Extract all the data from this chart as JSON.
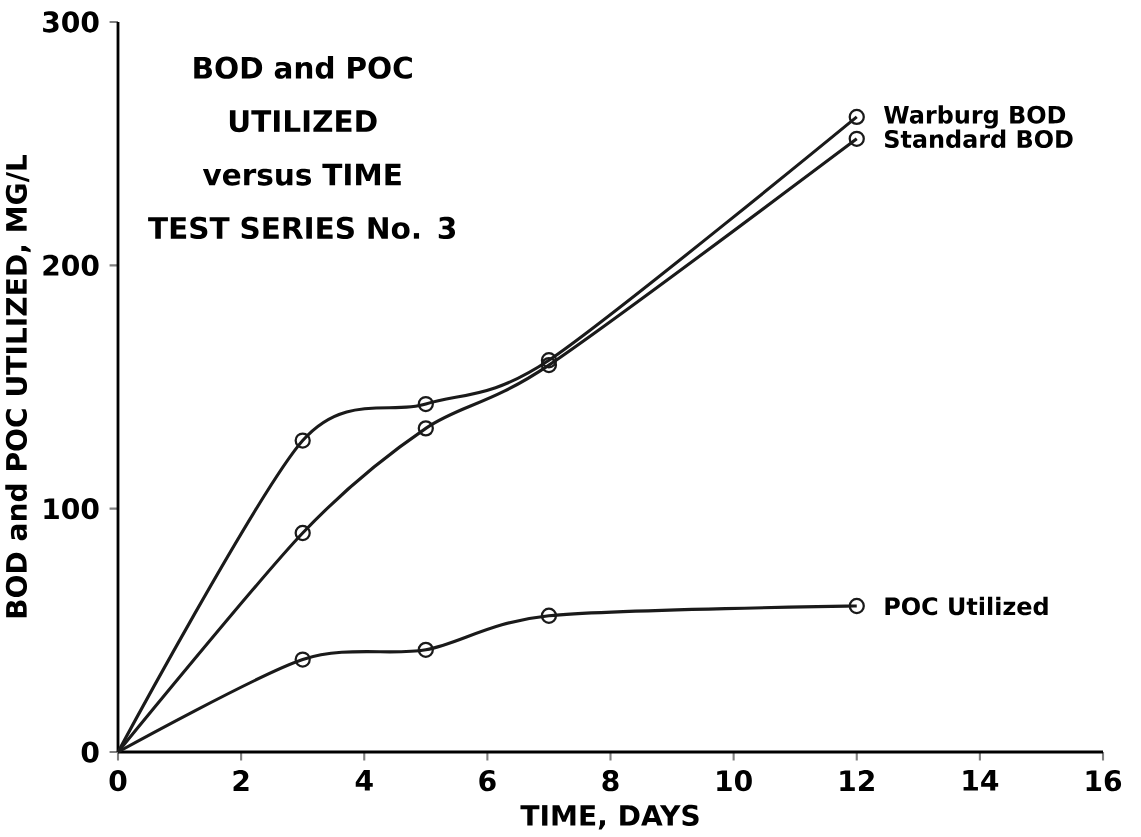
{
  "chart_data": {
    "type": "line",
    "title": "BOD and POC UTILIZED versus TIME",
    "subtitle": "TEST SERIES No. 3",
    "xlabel": "TIME, DAYS",
    "ylabel": "BOD and POC UTILIZED, MG/L",
    "x": [
      0,
      3,
      5,
      7,
      12
    ],
    "series": [
      {
        "name": "Warburg BOD",
        "color": "#1a1a1a",
        "values": [
          0,
          128,
          143,
          161,
          261
        ]
      },
      {
        "name": "Standard BOD",
        "color": "#1a1a1a",
        "values": [
          0,
          90,
          133,
          159,
          252
        ]
      },
      {
        "name": "POC Utilized",
        "color": "#1a1a1a",
        "values": [
          0,
          38,
          42,
          56,
          60
        ]
      }
    ],
    "xlim": [
      0,
      16
    ],
    "ylim": [
      0,
      300
    ],
    "xticks": [
      0,
      2,
      4,
      6,
      8,
      10,
      12,
      14,
      16
    ],
    "yticks": [
      0,
      100,
      200,
      300
    ],
    "grid": false,
    "legend": false,
    "marker": "circle",
    "line_style": "solid"
  }
}
